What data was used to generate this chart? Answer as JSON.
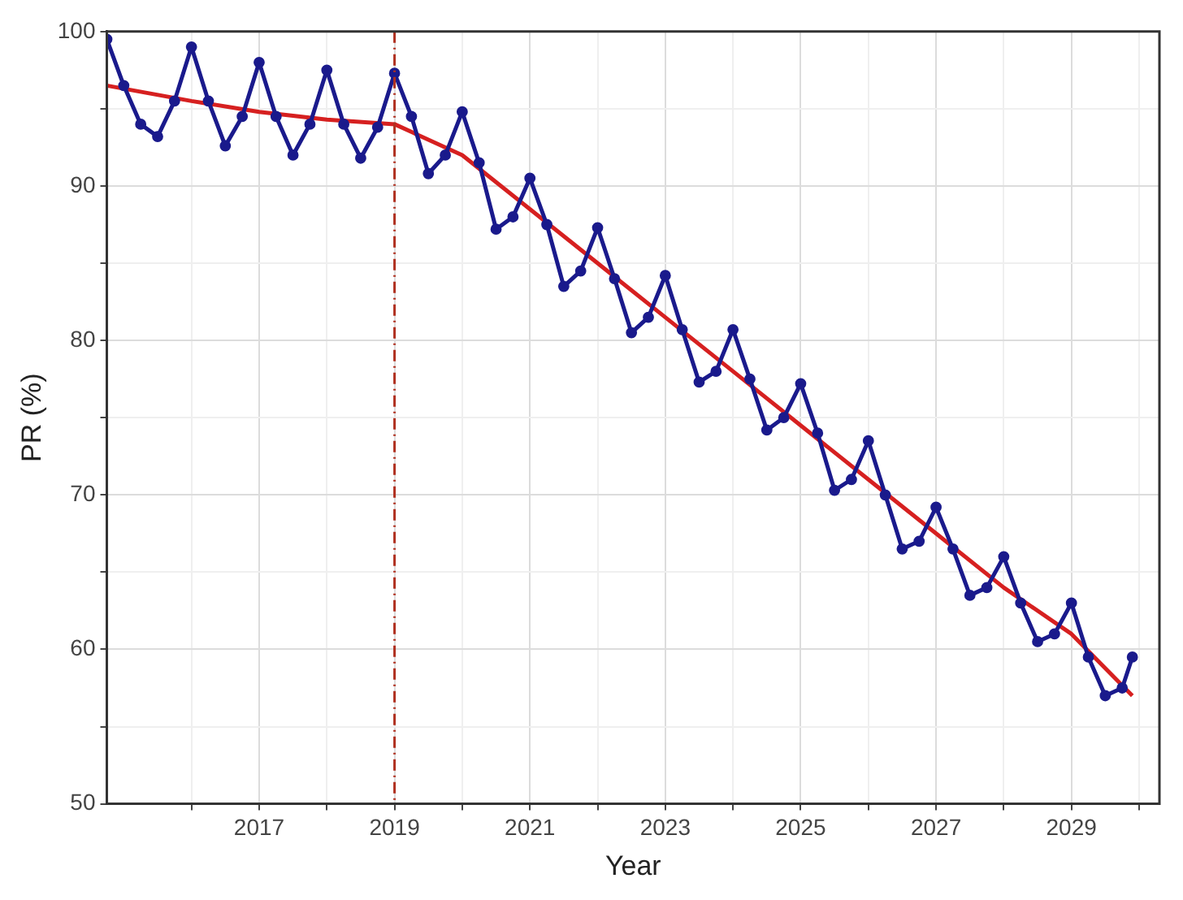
{
  "chart_data": {
    "type": "line",
    "xlabel": "Year",
    "ylabel": "PR (%)",
    "xlim": [
      2014.75,
      2030.3
    ],
    "xticks": [
      {
        "value": 2016,
        "label": null
      },
      2017,
      {
        "value": 2018,
        "label": null
      },
      2019,
      {
        "value": 2020,
        "label": null
      },
      2021,
      {
        "value": 2022,
        "label": null
      },
      2023,
      {
        "value": 2024,
        "label": null
      },
      2025,
      {
        "value": 2026,
        "label": null
      },
      2027,
      {
        "value": 2028,
        "label": null
      },
      2029,
      {
        "value": 2030,
        "label": null
      }
    ],
    "ylim": [
      50,
      100
    ],
    "yticks": [
      50,
      {
        "value": 55,
        "label": null
      },
      60,
      {
        "value": 65,
        "label": null
      },
      70,
      {
        "value": 75,
        "label": null
      },
      80,
      {
        "value": 85,
        "label": null
      },
      90,
      {
        "value": 95,
        "label": null
      },
      100
    ],
    "grid": true,
    "legend": false,
    "ref_lines": [
      {
        "axis": "x",
        "value": 2019,
        "color": "#b03020",
        "line_style": "dashed"
      }
    ],
    "series": [
      {
        "color": "#1a1a8c",
        "marker": "circle",
        "x": [
          2014.75,
          2015,
          2015.25,
          2015.5,
          2015.75,
          2016,
          2016.25,
          2016.5,
          2016.75,
          2017,
          2017.25,
          2017.5,
          2017.75,
          2018,
          2018.25,
          2018.5,
          2018.75,
          2019,
          2019.25,
          2019.5,
          2019.75,
          2020,
          2020.25,
          2020.5,
          2020.75,
          2021,
          2021.25,
          2021.5,
          2021.75,
          2022,
          2022.25,
          2022.5,
          2022.75,
          2023,
          2023.25,
          2023.5,
          2023.75,
          2024,
          2024.25,
          2024.5,
          2024.75,
          2025,
          2025.25,
          2025.5,
          2025.75,
          2026,
          2026.25,
          2026.5,
          2026.75,
          2027,
          2027.25,
          2027.5,
          2027.75,
          2028,
          2028.25,
          2028.5,
          2028.75,
          2029,
          2029.25,
          2029.5,
          2029.75,
          2029.9
        ],
        "values": [
          99.5,
          96.5,
          94,
          93.2,
          95.5,
          99,
          95.5,
          92.6,
          94.5,
          98,
          94.5,
          92,
          94,
          97.5,
          94,
          91.8,
          93.8,
          97.3,
          94.5,
          90.8,
          92,
          94.8,
          91.5,
          87.2,
          88,
          90.5,
          87.5,
          83.5,
          84.5,
          87.3,
          84,
          80.5,
          81.5,
          84.2,
          80.7,
          77.3,
          78,
          80.7,
          77.5,
          74.2,
          75,
          77.2,
          74,
          70.3,
          71,
          73.5,
          70,
          66.5,
          67,
          69.2,
          66.5,
          63.5,
          64,
          66,
          63,
          60.5,
          61,
          63,
          59.5,
          57,
          57.5,
          59.5
        ]
      },
      {
        "color": "#d62020",
        "marker": "none",
        "x": [
          2014.75,
          2016,
          2017,
          2018,
          2019,
          2020,
          2021,
          2022,
          2023,
          2024,
          2025,
          2026,
          2027,
          2028,
          2029,
          2029.9
        ],
        "values": [
          96.5,
          95.5,
          94.8,
          94.3,
          94,
          92,
          88.5,
          85,
          81.5,
          78,
          74.5,
          71,
          67.5,
          64,
          61,
          57
        ]
      }
    ]
  }
}
